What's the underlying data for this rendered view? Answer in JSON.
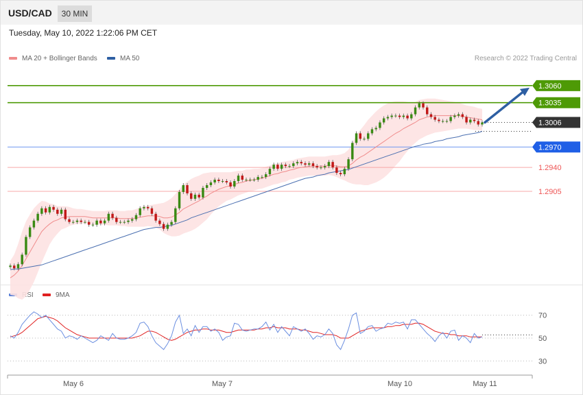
{
  "header": {
    "symbol": "USD/CAD",
    "timeframe": "30 MIN",
    "datetime": "Tuesday, May 10, 2022 1:22:06 PM CET",
    "research": "Research © 2022 Trading Central"
  },
  "legend": [
    {
      "label": "MA 20 + Bollinger Bands",
      "color": "#f08c8c"
    },
    {
      "label": "MA 50",
      "color": "#2e5fa3"
    }
  ],
  "rsi_legend": [
    {
      "label": "RSI",
      "color": "#5a7fd6"
    },
    {
      "label": "9MA",
      "color": "#e02020"
    }
  ],
  "chart_data": {
    "type": "line",
    "title": "USD/CAD",
    "price_axis_range": [
      1.2745,
      1.3085
    ],
    "x_ticks": [
      "May 6",
      "May 7",
      "May 10",
      "May 11"
    ],
    "levels": [
      {
        "value": 1.306,
        "label": "1.3060",
        "kind": "resistance",
        "color": "#4e9a06"
      },
      {
        "value": 1.3035,
        "label": "1.3035",
        "kind": "resistance",
        "color": "#4e9a06"
      },
      {
        "value": 1.3006,
        "label": "1.3006",
        "kind": "last",
        "color": "#333333"
      },
      {
        "value": 1.297,
        "label": "1.2970",
        "kind": "pivot",
        "color": "#1f5fe6"
      },
      {
        "value": 1.294,
        "label": "1.2940",
        "kind": "support",
        "color": "#ee5555"
      },
      {
        "value": 1.2905,
        "label": "1.2905",
        "kind": "support",
        "color": "#ee5555"
      }
    ],
    "price_close": [
      1.2796,
      1.2792,
      1.2798,
      1.2812,
      1.2838,
      1.2852,
      1.2862,
      1.2872,
      1.288,
      1.2874,
      1.2882,
      1.2878,
      1.2872,
      1.2878,
      1.2864,
      1.286,
      1.286,
      1.2862,
      1.286,
      1.286,
      1.2856,
      1.2856,
      1.2862,
      1.2858,
      1.2862,
      1.2872,
      1.2866,
      1.286,
      1.286,
      1.286,
      1.2862,
      1.2864,
      1.287,
      1.288,
      1.2882,
      1.288,
      1.2872,
      1.2862,
      1.2857,
      1.285,
      1.2856,
      1.286,
      1.288,
      1.2904,
      1.2914,
      1.2902,
      1.2894,
      1.29,
      1.2896,
      1.291,
      1.2914,
      1.2918,
      1.2922,
      1.292,
      1.292,
      1.2918,
      1.2912,
      1.292,
      1.2928,
      1.2922,
      1.2922,
      1.2922,
      1.2922,
      1.2926,
      1.2926,
      1.293,
      1.2938,
      1.2944,
      1.2938,
      1.2944,
      1.2942,
      1.2942,
      1.2946,
      1.2948,
      1.2946,
      1.2944,
      1.2946,
      1.2942,
      1.294,
      1.294,
      1.2942,
      1.2948,
      1.294,
      1.2932,
      1.293,
      1.2938,
      1.2952,
      1.2976,
      1.299,
      1.2982,
      1.2982,
      1.299,
      1.2996,
      1.2998,
      1.3006,
      1.3012,
      1.3014,
      1.3016,
      1.3016,
      1.3014,
      1.3016,
      1.3012,
      1.3018,
      1.3028,
      1.3034,
      1.3028,
      1.3018,
      1.3014,
      1.301,
      1.3008,
      1.3008,
      1.3008,
      1.3014,
      1.3016,
      1.3018,
      1.3014,
      1.3006,
      1.301,
      1.3008,
      1.3003,
      1.3006
    ],
    "ma20": [
      1.2778,
      1.2782,
      1.2788,
      1.2796,
      1.2806,
      1.2816,
      1.2826,
      1.2836,
      1.2846,
      1.2852,
      1.2857,
      1.2861,
      1.2863,
      1.2866,
      1.2867,
      1.2868,
      1.2868,
      1.2868,
      1.2868,
      1.2868,
      1.2867,
      1.2866,
      1.2866,
      1.2866,
      1.2866,
      1.2866,
      1.2866,
      1.2866,
      1.2865,
      1.2865,
      1.2865,
      1.2865,
      1.2866,
      1.2867,
      1.2868,
      1.2869,
      1.2869,
      1.2869,
      1.2868,
      1.2866,
      1.2866,
      1.2867,
      1.287,
      1.2874,
      1.2879,
      1.2882,
      1.2885,
      1.2888,
      1.2891,
      1.2895,
      1.2898,
      1.2902,
      1.2905,
      1.2908,
      1.291,
      1.2912,
      1.2913,
      1.2915,
      1.2917,
      1.2918,
      1.292,
      1.2921,
      1.2922,
      1.2923,
      1.2924,
      1.2926,
      1.2928,
      1.293,
      1.2931,
      1.2933,
      1.2934,
      1.2936,
      1.2937,
      1.2939,
      1.294,
      1.2941,
      1.2942,
      1.2942,
      1.2942,
      1.2942,
      1.2942,
      1.2943,
      1.2943,
      1.2942,
      1.2941,
      1.2941,
      1.2942,
      1.2946,
      1.2951,
      1.2955,
      1.2958,
      1.2962,
      1.2966,
      1.297,
      1.2974,
      1.2978,
      1.2982,
      1.2986,
      1.299,
      1.2993,
      1.2997,
      1.3,
      1.3003,
      1.3006,
      1.301,
      1.3012,
      1.3014,
      1.3015,
      1.3016,
      1.3016,
      1.3016,
      1.3016,
      1.3016,
      1.3016,
      1.3016,
      1.3015,
      1.3014,
      1.3013,
      1.3012,
      1.3011,
      1.301
    ],
    "bb_width": [
      0.0025,
      0.003,
      0.004,
      0.005,
      0.0055,
      0.0055,
      0.0054,
      0.005,
      0.0045,
      0.0038,
      0.003,
      0.0025,
      0.002,
      0.0017,
      0.0016,
      0.0014,
      0.0012,
      0.0011,
      0.0011,
      0.001,
      0.001,
      0.001,
      0.001,
      0.001,
      0.001,
      0.0011,
      0.0011,
      0.0011,
      0.0011,
      0.0011,
      0.0012,
      0.0012,
      0.0013,
      0.0014,
      0.0015,
      0.0015,
      0.0016,
      0.0017,
      0.0019,
      0.0022,
      0.0025,
      0.0028,
      0.0031,
      0.0034,
      0.0036,
      0.0037,
      0.0038,
      0.0038,
      0.0037,
      0.0036,
      0.0034,
      0.0031,
      0.0028,
      0.0025,
      0.0023,
      0.0021,
      0.002,
      0.0019,
      0.0018,
      0.0017,
      0.0017,
      0.0016,
      0.0016,
      0.0015,
      0.0015,
      0.0015,
      0.0015,
      0.0015,
      0.0015,
      0.0015,
      0.0015,
      0.0014,
      0.0014,
      0.0014,
      0.0014,
      0.0014,
      0.0014,
      0.0014,
      0.0014,
      0.0014,
      0.0014,
      0.0014,
      0.0015,
      0.0016,
      0.0018,
      0.002,
      0.0024,
      0.003,
      0.0036,
      0.004,
      0.0044,
      0.0048,
      0.005,
      0.0052,
      0.0053,
      0.0053,
      0.0052,
      0.005,
      0.0047,
      0.0044,
      0.004,
      0.0036,
      0.0032,
      0.003,
      0.0029,
      0.0028,
      0.0027,
      0.0026,
      0.0025,
      0.0024,
      0.0023,
      0.0022,
      0.0021,
      0.002,
      0.0019,
      0.0018,
      0.0017,
      0.0017,
      0.0017,
      0.0016,
      0.0016
    ],
    "ma50": [
      1.279,
      1.2791,
      1.2791,
      1.2792,
      1.2793,
      1.2794,
      1.2795,
      1.2796,
      1.2797,
      1.2799,
      1.2801,
      1.2803,
      1.2805,
      1.2807,
      1.2809,
      1.2811,
      1.2813,
      1.2815,
      1.2817,
      1.2819,
      1.2821,
      1.2823,
      1.2825,
      1.2827,
      1.2829,
      1.2831,
      1.2833,
      1.2835,
      1.2837,
      1.2839,
      1.2841,
      1.2843,
      1.2845,
      1.2847,
      1.2849,
      1.285,
      1.2851,
      1.2852,
      1.2852,
      1.2853,
      1.2854,
      1.2855,
      1.2857,
      1.2859,
      1.2861,
      1.2863,
      1.2866,
      1.2868,
      1.287,
      1.2872,
      1.2874,
      1.2876,
      1.2878,
      1.288,
      1.2882,
      1.2884,
      1.2886,
      1.2888,
      1.289,
      1.2892,
      1.2894,
      1.2896,
      1.2898,
      1.29,
      1.2902,
      1.2904,
      1.2906,
      1.2908,
      1.291,
      1.2912,
      1.2914,
      1.2916,
      1.2918,
      1.292,
      1.2922,
      1.2924,
      1.2925,
      1.2926,
      1.2928,
      1.2929,
      1.293,
      1.2932,
      1.2933,
      1.2934,
      1.2935,
      1.2936,
      1.2937,
      1.2939,
      1.2941,
      1.2943,
      1.2945,
      1.2947,
      1.2949,
      1.2951,
      1.2953,
      1.2955,
      1.2957,
      1.2959,
      1.2961,
      1.2963,
      1.2965,
      1.2967,
      1.2969,
      1.2971,
      1.2972,
      1.2974,
      1.2975,
      1.2976,
      1.2978,
      1.2979,
      1.298,
      1.2982,
      1.2983,
      1.2984,
      1.2985,
      1.2987,
      1.2988,
      1.2989,
      1.299,
      1.2991,
      1.2993
    ],
    "rsi_axis_range": [
      20,
      80
    ],
    "rsi_levels": [
      70,
      50,
      30
    ],
    "rsi": [
      52,
      50,
      55,
      62,
      66,
      70,
      73,
      71,
      68,
      70,
      66,
      62,
      58,
      56,
      50,
      52,
      51,
      49,
      52,
      50,
      48,
      46,
      48,
      52,
      50,
      48,
      54,
      50,
      49,
      49,
      50,
      52,
      55,
      63,
      64,
      60,
      52,
      46,
      43,
      40,
      45,
      52,
      64,
      70,
      54,
      58,
      52,
      61,
      55,
      60,
      60,
      56,
      58,
      55,
      48,
      51,
      52,
      63,
      62,
      57,
      56,
      57,
      58,
      58,
      60,
      64,
      57,
      62,
      55,
      60,
      56,
      52,
      60,
      58,
      56,
      58,
      54,
      49,
      52,
      51,
      53,
      58,
      54,
      44,
      40,
      48,
      58,
      70,
      72,
      54,
      56,
      60,
      61,
      56,
      58,
      59,
      63,
      62,
      64,
      63,
      64,
      58,
      66,
      66,
      62,
      58,
      54,
      51,
      47,
      52,
      55,
      50,
      56,
      57,
      48,
      52,
      50,
      46,
      54,
      50,
      51
    ],
    "rsi_ma9": [
      51,
      52,
      53,
      55,
      58,
      61,
      64,
      67,
      68,
      69,
      68,
      67,
      65,
      62,
      59,
      57,
      55,
      53,
      52,
      51,
      50,
      50,
      50,
      50,
      50,
      50,
      50,
      50,
      50,
      50,
      50,
      50,
      51,
      52,
      54,
      56,
      56,
      55,
      53,
      51,
      49,
      48,
      49,
      51,
      53,
      55,
      56,
      57,
      57,
      58,
      58,
      57,
      57,
      57,
      56,
      55,
      55,
      56,
      57,
      57,
      57,
      57,
      57,
      58,
      58,
      59,
      59,
      60,
      59,
      59,
      59,
      58,
      58,
      58,
      57,
      57,
      56,
      55,
      55,
      54,
      53,
      53,
      53,
      52,
      50,
      50,
      50,
      52,
      54,
      56,
      57,
      58,
      59,
      59,
      59,
      59,
      60,
      60,
      61,
      61,
      62,
      62,
      62,
      63,
      63,
      62,
      60,
      58,
      56,
      55,
      54,
      54,
      53,
      53,
      52,
      52,
      52,
      51,
      51,
      51,
      51
    ]
  }
}
